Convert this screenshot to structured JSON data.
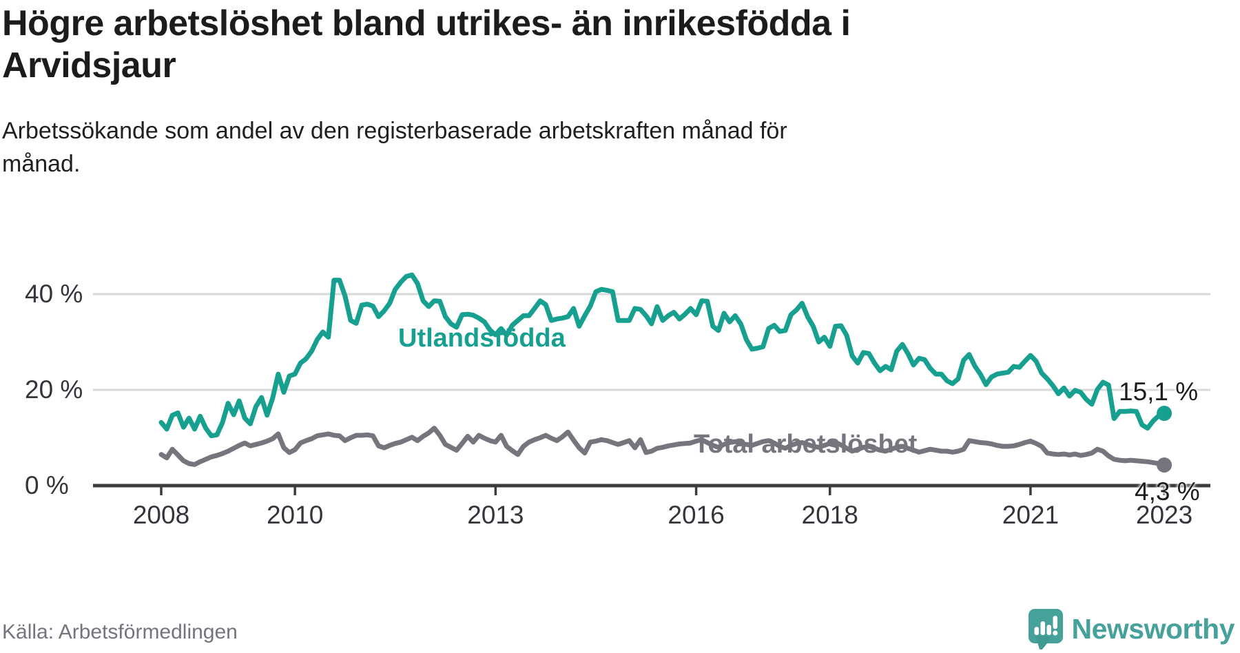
{
  "header": {
    "title_lines": [
      "Högre arbetslöshet bland utrikes- än inrikesfödda i",
      "Arvidsjaur"
    ],
    "subtitle_lines": [
      "Arbetssökande som andel av den registerbaserade arbetskraften månad för",
      "månad."
    ]
  },
  "footer": {
    "source": "Källa: Arbetsförmedlingen",
    "brand": "Newsworthy",
    "brand_color": "#46a19b",
    "logo_icon": "speech-bubble-bar-chart"
  },
  "chart_data": {
    "type": "line",
    "title": "Högre arbetslöshet bland utrikes- än inrikesfödda i Arvidsjaur",
    "subtitle": "Arbetssökande som andel av den registerbaserade arbetskraften månad för månad.",
    "x_unit": "month",
    "x_start": "2008-01",
    "x_end": "2023-01",
    "grid": "horizontal",
    "ylim": [
      0,
      46
    ],
    "y_ticks": [
      {
        "value": 0,
        "label": "0 %"
      },
      {
        "value": 20,
        "label": "20 %"
      },
      {
        "value": 40,
        "label": "40 %"
      }
    ],
    "x_ticks": [
      {
        "year": 2008,
        "label": "2008"
      },
      {
        "year": 2010,
        "label": "2010"
      },
      {
        "year": 2013,
        "label": "2013"
      },
      {
        "year": 2016,
        "label": "2016"
      },
      {
        "year": 2018,
        "label": "2018"
      },
      {
        "year": 2021,
        "label": "2021"
      },
      {
        "year": 2023,
        "label": "2023"
      }
    ],
    "series": [
      {
        "name": "Utlandsfödda",
        "color": "#17a08f",
        "end_label": "15,1 %",
        "end_value": 15.1,
        "values": [
          13.2,
          11.8,
          14.7,
          15.2,
          12.2,
          14.1,
          11.8,
          14.5,
          12.0,
          10.4,
          10.6,
          13.2,
          17.2,
          14.8,
          17.7,
          14.1,
          12.9,
          16.5,
          18.4,
          14.7,
          18.3,
          23.3,
          19.5,
          22.9,
          23.3,
          25.6,
          26.5,
          28.1,
          30.5,
          32.1,
          31.0,
          42.9,
          42.9,
          39.6,
          34.5,
          33.9,
          37.7,
          37.9,
          37.5,
          35.3,
          36.5,
          38.1,
          41.0,
          42.5,
          43.7,
          44.0,
          42.2,
          38.6,
          37.4,
          38.6,
          38.5,
          35.3,
          33.8,
          33.1,
          35.7,
          35.8,
          35.6,
          35.0,
          34.2,
          32.5,
          31.5,
          32.8,
          31.4,
          33.5,
          34.5,
          35.5,
          35.5,
          37.0,
          38.6,
          37.8,
          34.5,
          34.8,
          35.0,
          35.3,
          37.0,
          33.3,
          35.5,
          37.5,
          40.5,
          41.0,
          40.8,
          40.5,
          34.5,
          34.5,
          34.5,
          37.0,
          36.8,
          35.5,
          33.8,
          37.4,
          34.5,
          35.5,
          36.2,
          34.8,
          35.8,
          37.0,
          35.7,
          38.6,
          38.5,
          33.3,
          32.4,
          36.0,
          34.2,
          35.5,
          33.8,
          30.5,
          28.5,
          28.7,
          29.0,
          32.8,
          33.5,
          32.2,
          32.4,
          35.7,
          36.7,
          38.1,
          35.3,
          33.3,
          30.0,
          31.0,
          29.1,
          33.3,
          33.4,
          31.4,
          27.1,
          25.6,
          27.8,
          27.6,
          25.6,
          24.0,
          24.9,
          24.2,
          28.1,
          29.5,
          27.6,
          25.2,
          26.6,
          26.3,
          24.5,
          23.3,
          23.3,
          21.9,
          21.3,
          22.3,
          26.2,
          27.4,
          25.0,
          23.3,
          21.1,
          22.7,
          23.3,
          23.5,
          23.7,
          24.9,
          24.7,
          26.0,
          27.2,
          26.0,
          23.5,
          22.3,
          20.9,
          19.2,
          20.4,
          18.7,
          19.9,
          19.5,
          18.0,
          17.0,
          20.1,
          21.6,
          21.0,
          14.0,
          15.5,
          15.5,
          15.6,
          15.5,
          12.7,
          12.0,
          13.5,
          14.6,
          15.1
        ]
      },
      {
        "name": "Total arbetslöshet",
        "color": "#76747c",
        "end_label": "4,3 %",
        "end_value": 4.3,
        "values": [
          6.5,
          5.8,
          7.6,
          6.4,
          5.2,
          4.6,
          4.4,
          5.0,
          5.5,
          6.0,
          6.3,
          6.7,
          7.2,
          7.8,
          8.4,
          8.9,
          8.3,
          8.6,
          8.9,
          9.3,
          9.8,
          10.8,
          7.9,
          6.9,
          7.5,
          8.9,
          9.4,
          9.8,
          10.4,
          10.6,
          10.8,
          10.5,
          10.4,
          9.4,
          10.0,
          10.5,
          10.5,
          10.6,
          10.4,
          8.3,
          7.9,
          8.4,
          8.8,
          9.1,
          9.6,
          10.1,
          9.4,
          10.3,
          11.0,
          12.0,
          10.5,
          8.6,
          8.0,
          7.4,
          8.8,
          10.3,
          9.1,
          10.5,
          9.9,
          9.4,
          9.1,
          10.5,
          8.2,
          7.3,
          6.5,
          8.2,
          9.1,
          9.6,
          10.0,
          10.5,
          9.9,
          9.4,
          10.2,
          11.2,
          9.5,
          7.9,
          6.8,
          9.1,
          9.3,
          9.6,
          9.4,
          9.0,
          8.6,
          9.0,
          9.4,
          7.9,
          9.6,
          6.9,
          7.2,
          7.8,
          8.0,
          8.3,
          8.5,
          8.7,
          8.8,
          8.9,
          9.3,
          9.6,
          9.0,
          8.4,
          8.0,
          8.6,
          9.0,
          9.2,
          8.8,
          8.6,
          8.4,
          8.8,
          9.2,
          9.4,
          8.9,
          8.2,
          7.8,
          8.4,
          8.8,
          9.0,
          8.6,
          8.2,
          8.0,
          8.4,
          8.8,
          9.0,
          8.5,
          7.8,
          7.2,
          7.6,
          8.0,
          8.2,
          7.8,
          7.4,
          7.2,
          7.6,
          8.0,
          8.2,
          7.8,
          7.4,
          7.0,
          7.3,
          7.6,
          7.4,
          7.2,
          7.2,
          7.0,
          7.2,
          7.6,
          9.4,
          9.2,
          9.0,
          8.9,
          8.7,
          8.4,
          8.2,
          8.2,
          8.3,
          8.6,
          9.0,
          9.3,
          8.8,
          8.2,
          6.8,
          6.6,
          6.5,
          6.6,
          6.4,
          6.6,
          6.3,
          6.5,
          6.8,
          7.6,
          7.2,
          6.2,
          5.5,
          5.3,
          5.2,
          5.3,
          5.2,
          5.1,
          5.0,
          4.8,
          4.6,
          4.3
        ]
      }
    ]
  }
}
